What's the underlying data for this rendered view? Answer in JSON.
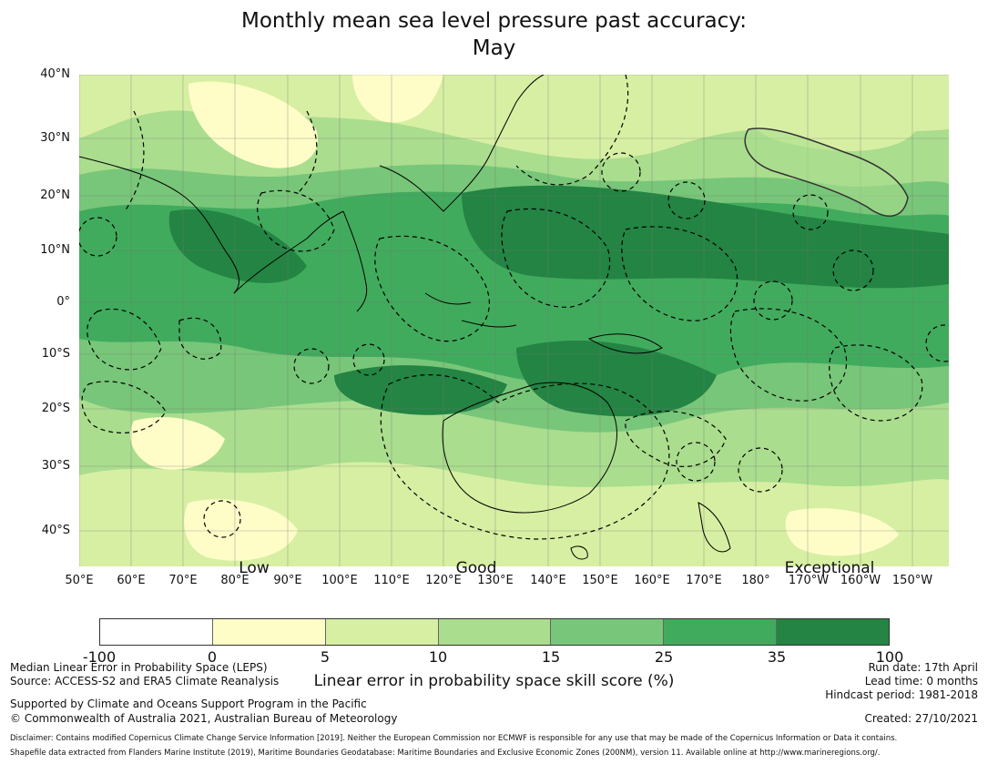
{
  "title": {
    "line1": "Monthly mean sea level pressure past accuracy:",
    "line2": "May"
  },
  "map": {
    "lat_labels": [
      "40°N",
      "30°N",
      "20°N",
      "10°N",
      "0°",
      "10°S",
      "20°S",
      "30°S",
      "40°S"
    ],
    "lon_labels": [
      "50°E",
      "60°E",
      "70°E",
      "80°E",
      "90°E",
      "100°E",
      "110°E",
      "120°E",
      "130°E",
      "140°E",
      "150°E",
      "160°E",
      "170°E",
      "180°",
      "170°W",
      "160°W",
      "150°W"
    ],
    "category_labels": [
      "Low",
      "Good",
      "Exceptional"
    ]
  },
  "colorbar": {
    "ticks": [
      "-100",
      "0",
      "5",
      "10",
      "15",
      "25",
      "35",
      "100"
    ],
    "colors": [
      "#ffffff",
      "#fefdc8",
      "#d7efa3",
      "#aadd8e",
      "#78c679",
      "#41ab5d",
      "#238443"
    ],
    "title": "Linear error in probability space skill score (%)"
  },
  "footer": {
    "left1": "Median Linear Error in Probability Space (LEPS)",
    "left2": "Source: ACCESS-S2 and ERA5 Climate Reanalysis",
    "left3": "Supported by Climate and Oceans Support Program in the Pacific",
    "left4": "© Commonwealth of Australia 2021, Australian Bureau of Meteorology",
    "right1": "Run date: 17th April",
    "right2": "Lead time: 0 months",
    "right3": "Hindcast period: 1981-2018",
    "right4": "Created: 27/10/2021",
    "disclaimer1": "Disclaimer: Contains modified Copernicus Climate Change Service Information [2019]. Neither the European Commission nor ECMWF is responsible for any use that may be made of the Copernicus Information or Data it contains.",
    "disclaimer2": "Shapefile data extracted from Flanders Marine Institute (2019), Maritime Boundaries Geodatabase: Maritime Boundaries and Exclusive Economic Zones (200NM), version 11. Available online at http://www.marineregions.org/."
  }
}
